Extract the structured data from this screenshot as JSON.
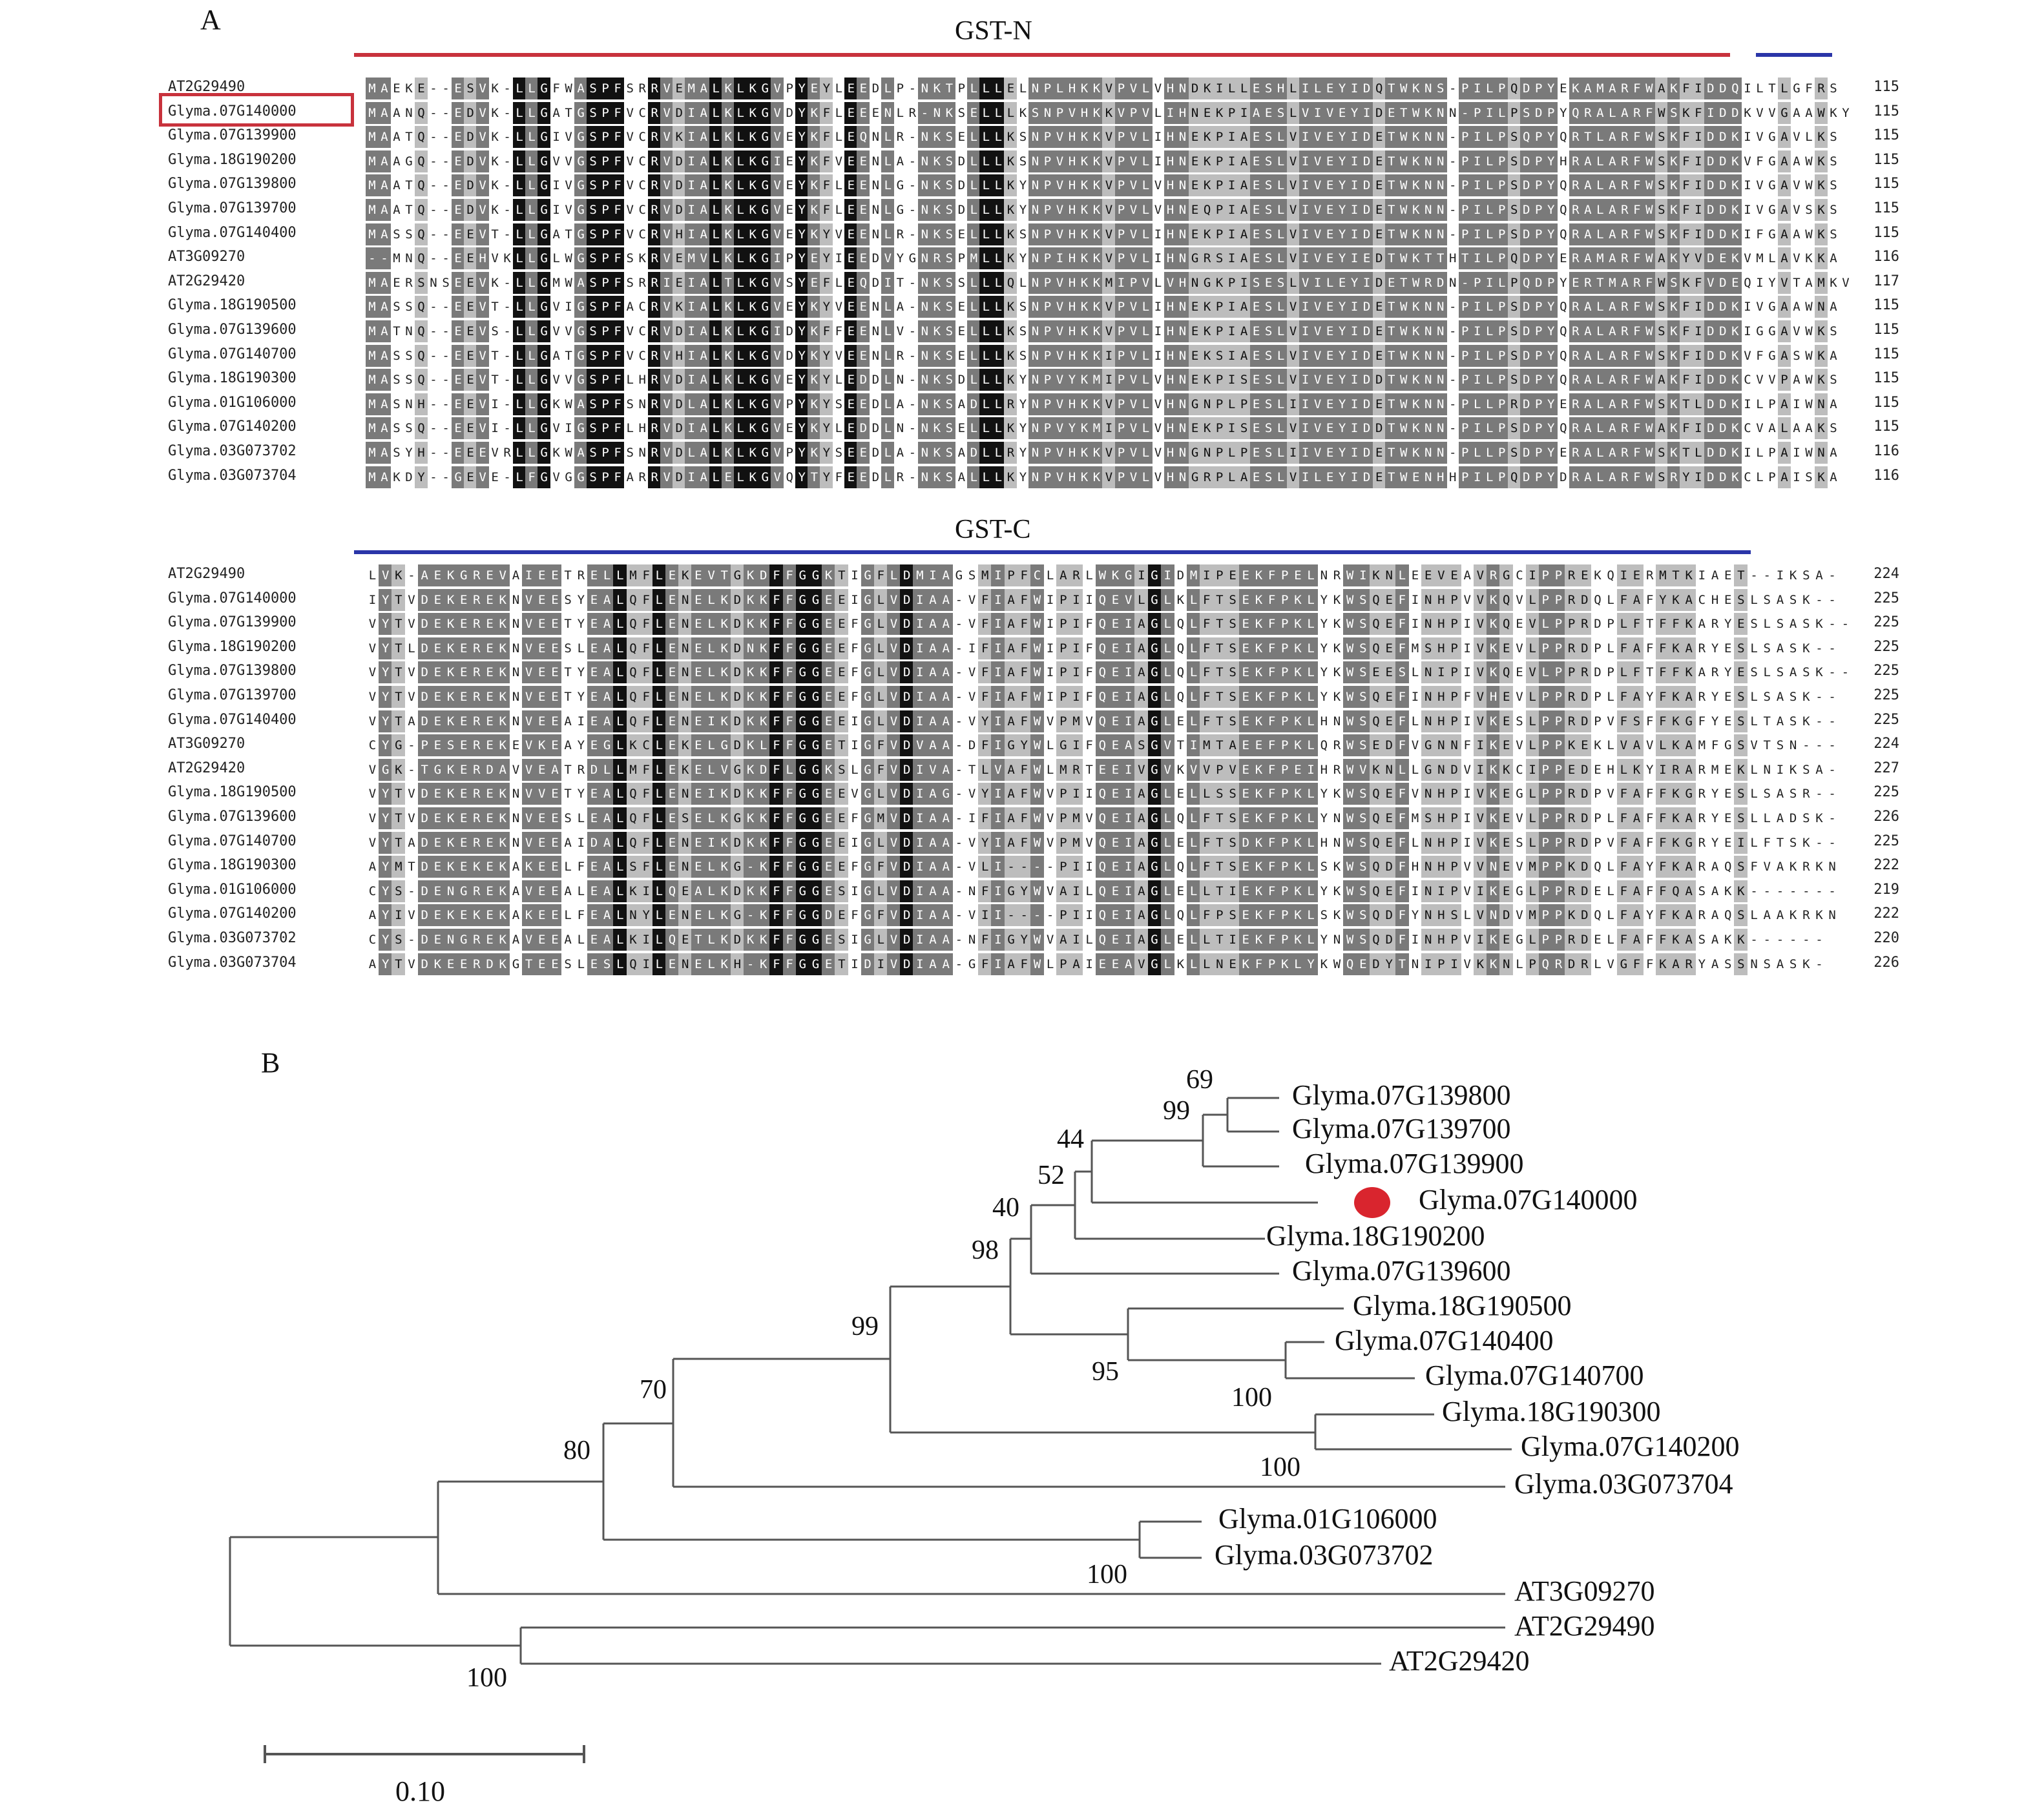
{
  "panel_a": {
    "letter": "A",
    "domains": [
      {
        "name": "GST-N",
        "color": "#c8323c"
      },
      {
        "name": "",
        "color": "#2a35a8"
      },
      {
        "name": "GST-C",
        "color": "#2a35a8"
      }
    ],
    "block1": {
      "rows": [
        {
          "name": "AT2G29490",
          "seq": "MAEKE--ESVK-LLGFWASPFSRRVEMALKLKGVPYEYLEEDLP-NKTPLLLELNPLHKKVPVLVHNDKILLESHLILEYIDQTWKNS-PILPQDPYEKAMARFWAKFIDDQILTLGFRS",
          "end": "115",
          "highlighted": false
        },
        {
          "name": "Glyma.07G140000",
          "seq": "MAANQ--EDVK-LLGATGSPFVCRVDIALKLKGVDYKFLEEENLR-NKSELLLKSNPVHKKVPVLIHNEKPIAESLVIVEYIDETWKNN-PILPSDPYQRALARFWSKFIDDKVVGAAWKY",
          "end": "115",
          "highlighted": true
        },
        {
          "name": "Glyma.07G139900",
          "seq": "MAATQ--EDVK-LLGIVGSPFVCRVKIALKLKGVEYKFLEQNLR-NKSELLLKSNPVHKKVPVLIHNEKPIAESLVIVEYIDETWKNN-PILPSQPYQRTLARFWSKFIDDKIVGAVLKS",
          "end": "115",
          "highlighted": false
        },
        {
          "name": "Glyma.18G190200",
          "seq": "MAAGQ--EDVK-LLGVVGSPFVCRVDIALKLKGIEYKFVEENLA-NKSDLLLKSNPVHKKVPVLIHNEKPIAESLVIVEYIDETWKNN-PILPSDPYHRALARFWSKFIDDKVFGAAWKS",
          "end": "115",
          "highlighted": false
        },
        {
          "name": "Glyma.07G139800",
          "seq": "MAATQ--EDVK-LLGIVGSPFVCRVDIALKLKGVEYKFLEENLG-NKSDLLLKYNPVHKKVPVLVHNEKPIAESLVIVEYIDETWKNN-PILPSDPYQRALARFWSKFIDDKIVGAVWKS",
          "end": "115",
          "highlighted": false
        },
        {
          "name": "Glyma.07G139700",
          "seq": "MAATQ--EDVK-LLGIVGSPFVCRVDIALKLKGVEYKFLEENLG-NKSDLLLKYNPVHKKVPVLVHNEQPIAESLVIVEYIDETWKNN-PILPSDPYQRALARFWSKFIDDKIVGAVSKS",
          "end": "115",
          "highlighted": false
        },
        {
          "name": "Glyma.07G140400",
          "seq": "MASSQ--EEVT-LLGATGSPFVCRVHIALKLKGVEYKYVEENLR-NKSELLLKSNPVHKKVPVLIHNEKPIAESLVIVEYIDETWKNN-PILPSDPYQRALARFWSKFIDDKIFGAAWKS",
          "end": "115",
          "highlighted": false
        },
        {
          "name": "AT3G09270",
          "seq": "--MNQ--EEHVKLLGLWGSPFSKRVEMVLKLKGIPYEYIEEDVYGNRSPMLLKYNPIHKKVPVLIHNGRSIAESLVIVEYIEDTWKTTHTILPQDPYERAMARFWAKYVDEKVMLAVKKA",
          "end": "116",
          "highlighted": false
        },
        {
          "name": "AT2G29420",
          "seq": "MAERSNSEEVK-LLGMWASPFSRRIEIALTLKGVSYEFLEQDIT-NKSSLLLQLNPVHKKMIPVLVHNGKPISESLVILEYIDETWRDN-PILPQDPYERTMARFWSKFVDEQIYVTAMKV",
          "end": "117",
          "highlighted": false
        },
        {
          "name": "Glyma.18G190500",
          "seq": "MASSQ--EEVT-LLGVIGSPFACRVKIALKLKGVEYKYVEENLA-NKSELLLKSNPVHKKVPVLIHNEKPIAESLVIVEYIDETWKNN-PILPSDPYQRALARFWSKFIDDKIVGAAWNA",
          "end": "115",
          "highlighted": false
        },
        {
          "name": "Glyma.07G139600",
          "seq": "MATNQ--EEVS-LLGVVGSPFVCRVDIALKLKGIDYKFFEENLV-NKSELLLKSNPVHKKVPVLIHNEKPIAESLVIVEYIDETWKNN-PILPSDPYQRALARFWSKFIDDKIGGAVWKS",
          "end": "115",
          "highlighted": false
        },
        {
          "name": "Glyma.07G140700",
          "seq": "MASSQ--EEVT-LLGATGSPFVCRVHIALKLKGVDYKYVEENLR-NKSELLLKSNPVHKKIPVLIHNEKSIAESLVIVEYIDETWKNN-PILPSDPYQRALARFWSKFIDDKVFGASWKA",
          "end": "115",
          "highlighted": false
        },
        {
          "name": "Glyma.18G190300",
          "seq": "MASSQ--EEVT-LLGVVGSPFLHRVDIALKLKGVEYKYLEDDLN-NKSDLLLKYNPVYKMIPVLVHNEKPISESLVIVEYIDDTWKNN-PILPSDPYQRALARFWAKFIDDKCVVPAWKS",
          "end": "115",
          "highlighted": false
        },
        {
          "name": "Glyma.01G106000",
          "seq": "MASNH--EEVI-LLGKWASPFSNRVDLALKLKGVPYKYSEEDLA-NKSADLLRYNPVHKKVPVLVHNGNPLPESLIIVEYIDETWKNN-PLLPRDPYERALARFWSKTLDDKILPAIWNA",
          "end": "115",
          "highlighted": false
        },
        {
          "name": "Glyma.07G140200",
          "seq": "MASSQ--EEVI-LLGVIGSPFLHRVDIALKLKGVEYKYLEDDLN-NKSELLLKYNPVYKMIPVLVHNEKPISESLVIVEYIDDTWKNN-PILPSDPYQRALARFWAKFIDDKCVALAAKS",
          "end": "115",
          "highlighted": false
        },
        {
          "name": "Glyma.03G073702",
          "seq": "MASYH--EEEVRLLGKWASPFSNRVDLALKLKGVPYKYSEEDLA-NKSADLLRYNPVHKKVPVLVHNGNPLPESLIIVEYIDETWKNN-PLLPSDPYERALARFWSKTLDDKILPAIWNA",
          "end": "116",
          "highlighted": false
        },
        {
          "name": "Glyma.03G073704",
          "seq": "MAKDY--GEVE-LFGVGGSPFARRVDIALELKGVQYTYFEEDLR-NKSALLLKYNPVHKKVPVLVHNGRPLAESLVILEYIDETWENHHPILPQDPYDRALARFWSRYIDDKCLPAISKA",
          "end": "116",
          "highlighted": false
        }
      ]
    },
    "block2": {
      "rows": [
        {
          "name": "AT2G29490",
          "seq": "LVK-AEKGREVAIEETRELLMFLEKEVTGKDFFGGKTIGFLDMIAGSMIPFCLARLWKGIGIDMIPEEKFPELNRWIKNLEEVEAVRGCIPPREKQIERMTKIAET--IKSA-",
          "end": "224"
        },
        {
          "name": "Glyma.07G140000",
          "seq": "IYTVDEKEREKNVEESYEALQFLENELKDKKFFGGEEIGLVDIAA-VFIAFWIPIIQEVLGLKLFTSEKFPKLYKWSQEFINHPVVKQVLPPRDQLFAFYKACHESLSASK--",
          "end": "225"
        },
        {
          "name": "Glyma.07G139900",
          "seq": "VYTVDEKEREKNVEETYEALQFLENELKDKKFFGGEEFGLVDIAA-VFIAFWIPIFQEIAGLQLFTSEKFPKLYKWSQEFINHPIVKQEVLPPRDPLFTFFKARYESLSASK--",
          "end": "225"
        },
        {
          "name": "Glyma.18G190200",
          "seq": "VYTLDEKEREKNVEESLEALQFLENELKDNKFFGGEEFGLVDIAA-IFIAFWIPIFQEIAGLQLFTSEKFPKLYKWSQEFMSHPIVKEVLPPRDPLFAFFKARYESLSASK--",
          "end": "225"
        },
        {
          "name": "Glyma.07G139800",
          "seq": "VYTVDEKEREKNVEETYEALQFLENELKDKKFFGGEEFGLVDIAA-VFIAFWIPIFQEIAGLQLFTSEKFPKLYKWSEESLNIPIVKQEVLPPRDPLFTFFKARYESLSASK--",
          "end": "225"
        },
        {
          "name": "Glyma.07G139700",
          "seq": "VYTVDEKEREKNVEETYEALQFLENELKDKKFFGGEEFGLVDIAA-VFIAFWIPIFQEIAGLQLFTSEKFPKLYKWSQEFINHPFVHEVLPPRDPLFAYFKARYESLSASK--",
          "end": "225"
        },
        {
          "name": "Glyma.07G140400",
          "seq": "VYTADEKEREKNVEEAIEALQFLENEIKDKKFFGGEEIGLVDIAA-VYIAFWVPMVQEIAGLELFTSEKFPKLHNWSQEFLNHPIVKESLPPRDPVFSFFKGFYESLTASK--",
          "end": "225"
        },
        {
          "name": "AT3G09270",
          "seq": "CYG-PESEREKEVKEAYEGLKCLEKELGDKLFFGGETIGFVDVAA-DFIGYWLGIFQEASGVTIMTAEEFPKLQRWSEDFVGNNFIKEVLPPKEKLVAVLKAMFGSVTSN---",
          "end": "224"
        },
        {
          "name": "AT2G29420",
          "seq": "VGK-TGKERDAVVEATRDLLMFLEKELVGKDFLGGKSLGFVDIVA-TLVAFWLMRTEEIVGVKVVPVEKFPEIHRWVKNLLGNDVIKKCIPPEDEHLKYIRARMEKLNIKSA-",
          "end": "227"
        },
        {
          "name": "Glyma.18G190500",
          "seq": "VYTVDEKEREKNVVETYEALQFLENEIKDKKFFGGEEVGLVDIAG-VYIAFWVPIIQEIAGLELLSSEKFPKLYKWSQEFVNHPIVKEGLPPRDPVFAFFKGRYESLSASR--",
          "end": "225"
        },
        {
          "name": "Glyma.07G139600",
          "seq": "VYTVDEKEREKNVEESLEALQFLESELKGKKFFGGEEFGMVDIAA-IFIAFWVPMVQEIAGLQLFTSEKFPKLYNWSQEFMSHPIVKEVLPPRDPLFAFFKARYESLLADSK-",
          "end": "226"
        },
        {
          "name": "Glyma.07G140700",
          "seq": "VYTADEKEREKNVEEAIDALQFLENEIKDKKFFGGEEIGLVDIAA-VYIAFWVPMVQEIAGLELFTSDKFPKLHNWSQEFLNHPIVKESLPPRDPVFAFFKGRYEILFTSK--",
          "end": "225"
        },
        {
          "name": "Glyma.18G190300",
          "seq": "AYMTDEKEKEKAKEELFEALSFLENELKG-KFFGGEEFGFVDIAA-VLI----PIIQEIAGLQLFTSEKFPKLSKWSQDFHNHPVVNEVMPPKDQLFAYFKARAQSFVAKRKN",
          "end": "222"
        },
        {
          "name": "Glyma.01G106000",
          "seq": "CYS-DENGREKAVEEALEALKILQEALKDKKFFGGESIGLVDIAA-NFIGYWVAILQEIAGLELLTIEKFPKLYKWSQEFINIPVIKEGLPPRDELFAFFQASAKK-------",
          "end": "219"
        },
        {
          "name": "Glyma.07G140200",
          "seq": "AYIVDEKEKEKAKEELFEALNYLENELKG-KFFGGDEFGFVDIAA-VII----PIIQEIAGLQLFPSEKFPKLSKWSQDFYNHSLVNDVMPPKDQLFAYFKARAQSLAAKRKN",
          "end": "222"
        },
        {
          "name": "Glyma.03G073702",
          "seq": "CYS-DENGREKAVEEALEALKILQETLKDKKFFGGESIGLVDIAA-NFIGYWVAILQEIAGLELLTIEKFPKLYNWSQDFINHPVIKEGLPPRDELFAFFKASAKK------",
          "end": "220"
        },
        {
          "name": "Glyma.03G073704",
          "seq": "AYTVDKEERDKGTEESLESLQILENELKH-KFFGGETIDIVDIAA-GFIAFWLPAIEEAVGLKLLNEKFPKLYKWQEDYTNIPIVKKNLPQRDRLVGFFKARYASSNSASK-",
          "end": "226"
        }
      ]
    }
  },
  "panel_b": {
    "letter": "B",
    "leaves": [
      {
        "id": "g139800",
        "label": "Glyma.07G139800"
      },
      {
        "id": "g139700",
        "label": "Glyma.07G139700"
      },
      {
        "id": "g139900",
        "label": "Glyma.07G139900"
      },
      {
        "id": "g140000",
        "label": "Glyma.07G140000",
        "marker_color": "#d9252e"
      },
      {
        "id": "g190200",
        "label": "Glyma.18G190200"
      },
      {
        "id": "g139600",
        "label": "Glyma.07G139600"
      },
      {
        "id": "g190500",
        "label": "Glyma.18G190500"
      },
      {
        "id": "g140400",
        "label": "Glyma.07G140400"
      },
      {
        "id": "g140700",
        "label": "Glyma.07G140700"
      },
      {
        "id": "g190300",
        "label": "Glyma.18G190300"
      },
      {
        "id": "g140200",
        "label": "Glyma.07G140200"
      },
      {
        "id": "g073704",
        "label": "Glyma.03G073704"
      },
      {
        "id": "g106000",
        "label": "Glyma.01G106000"
      },
      {
        "id": "g073702",
        "label": "Glyma.03G073702"
      },
      {
        "id": "at09270",
        "label": "AT3G09270"
      },
      {
        "id": "at29490",
        "label": "AT2G29490"
      },
      {
        "id": "at29420",
        "label": "AT2G29420"
      }
    ],
    "bootstrap": [
      "69",
      "99",
      "44",
      "52",
      "40",
      "98",
      "99",
      "95",
      "100",
      "70",
      "100",
      "80",
      "100",
      "100"
    ],
    "scale_bar": {
      "label": "0.10",
      "value": 0.1
    }
  }
}
